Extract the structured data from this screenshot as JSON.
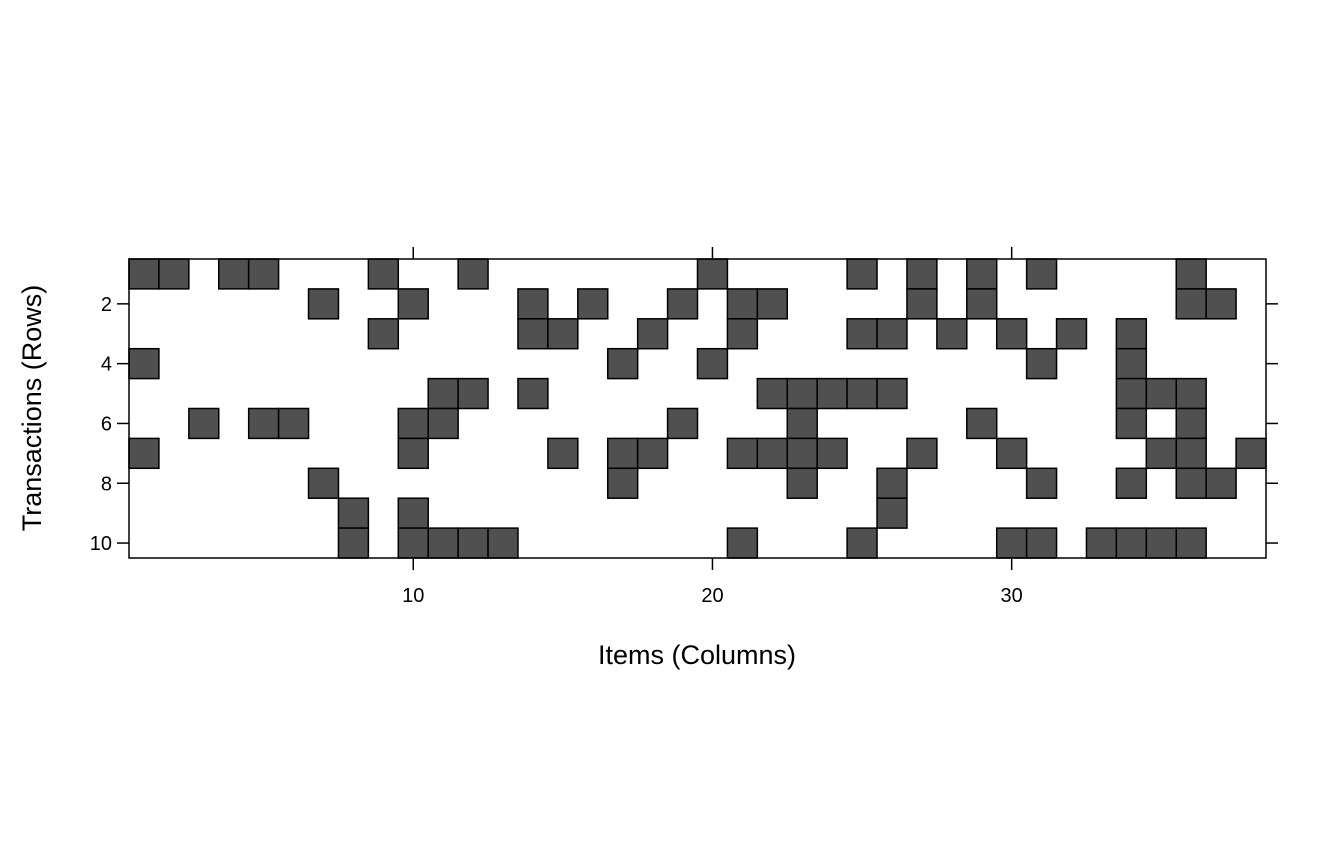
{
  "chart_data": {
    "type": "heatmap",
    "title": "",
    "xlabel": "Items (Columns)",
    "ylabel": "Transactions (Rows)",
    "n_items": 38,
    "n_transactions": 10,
    "xlim": [
      0.5,
      38.5
    ],
    "ylim": [
      0.5,
      10.5
    ],
    "x_ticks": [
      10,
      20,
      30
    ],
    "y_ticks": [
      2,
      4,
      6,
      8,
      10
    ],
    "y_reversed": true,
    "grid": false,
    "legend": "none",
    "colors": {
      "filled": "#505050",
      "empty": "#ffffff",
      "border": "#000000"
    },
    "rows": [
      {
        "transaction": 1,
        "items": [
          1,
          2,
          4,
          5,
          9,
          12,
          20,
          25,
          27,
          29,
          31,
          36
        ]
      },
      {
        "transaction": 2,
        "items": [
          7,
          10,
          14,
          16,
          19,
          21,
          22,
          27,
          29,
          36,
          37
        ]
      },
      {
        "transaction": 3,
        "items": [
          9,
          14,
          15,
          18,
          21,
          25,
          26,
          28,
          30,
          32,
          34
        ]
      },
      {
        "transaction": 4,
        "items": [
          1,
          17,
          20,
          31,
          34
        ]
      },
      {
        "transaction": 5,
        "items": [
          11,
          12,
          14,
          22,
          23,
          24,
          25,
          26,
          34,
          35,
          36
        ]
      },
      {
        "transaction": 6,
        "items": [
          3,
          5,
          6,
          10,
          11,
          19,
          23,
          29,
          34,
          36
        ]
      },
      {
        "transaction": 7,
        "items": [
          1,
          10,
          15,
          17,
          18,
          21,
          22,
          23,
          24,
          27,
          30,
          35,
          36,
          38
        ]
      },
      {
        "transaction": 8,
        "items": [
          7,
          17,
          23,
          26,
          31,
          34,
          36,
          37
        ]
      },
      {
        "transaction": 9,
        "items": [
          8,
          10,
          26
        ]
      },
      {
        "transaction": 10,
        "items": [
          8,
          10,
          11,
          12,
          13,
          21,
          25,
          30,
          31,
          33,
          34,
          35,
          36
        ]
      }
    ]
  }
}
